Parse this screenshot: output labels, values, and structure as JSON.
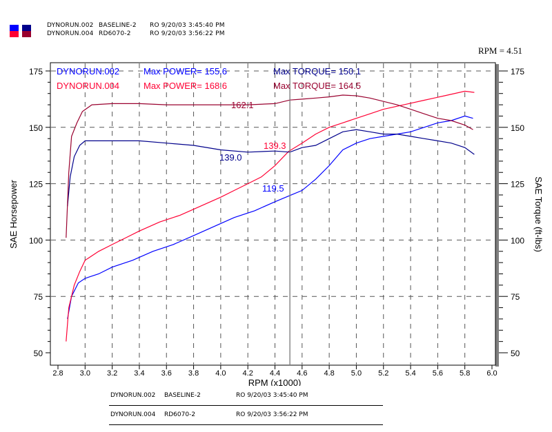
{
  "header": {
    "runs": [
      {
        "name": "DYNORUN.002",
        "desc": "BASELINE-2",
        "info": "RO 9/20/03 3:45:40 PM"
      },
      {
        "name": "DYNORUN.004",
        "desc": "RD6070-2",
        "info": "RO 9/20/03 3:56:22 PM"
      }
    ],
    "rpm_readout": "RPM = 4.51"
  },
  "chart_data": {
    "type": "line",
    "xlabel": "RPM (x1000)",
    "ylabel": "SAE Horsepower",
    "y2label": "SAE Torque (ft-lbs)",
    "xlim": [
      2.8,
      6.0
    ],
    "ylim": [
      50,
      175
    ],
    "y2lim": [
      50,
      175
    ],
    "x_ticks": [
      "2.8",
      "3.0",
      "3.2",
      "3.4",
      "3.6",
      "3.8",
      "4.0",
      "4.2",
      "4.4",
      "4.6",
      "4.8",
      "5.0",
      "5.2",
      "5.4",
      "5.6",
      "5.8",
      "6.0"
    ],
    "y_ticks": [
      "50",
      "75",
      "100",
      "125",
      "150",
      "175"
    ],
    "grid": true,
    "cursor_rpm": 4.51,
    "legend": [
      {
        "run": "DYNORUN.002",
        "power_text": "Max POWER= 155.6",
        "torque_text": "Max TORQUE= 150.1",
        "power_color": "#0000ff",
        "torque_color": "#00008b"
      },
      {
        "run": "DYNORUN.004",
        "power_text": "Max POWER= 168.6",
        "torque_text": "Max TORQUE= 164.5",
        "power_color": "#ff0033",
        "torque_color": "#99002e"
      }
    ],
    "cursor_labels": [
      {
        "text": "162.1",
        "color": "#99002e",
        "rpm": 4.51,
        "value": 162.1
      },
      {
        "text": "139.3",
        "color": "#ff0033",
        "rpm": 4.51,
        "value": 139.3
      },
      {
        "text": "139.0",
        "color": "#00008b",
        "rpm": 4.51,
        "value": 139.0
      },
      {
        "text": "119.5",
        "color": "#0000ff",
        "rpm": 4.51,
        "value": 119.5
      }
    ],
    "series": [
      {
        "name": "DYNORUN.002 POWER",
        "color": "#0000ff",
        "x": [
          2.87,
          2.9,
          2.95,
          3.0,
          3.1,
          3.2,
          3.35,
          3.5,
          3.65,
          3.8,
          3.95,
          4.1,
          4.25,
          4.4,
          4.5,
          4.6,
          4.7,
          4.8,
          4.9,
          5.0,
          5.1,
          5.2,
          5.3,
          5.4,
          5.5,
          5.6,
          5.7,
          5.8,
          5.86
        ],
        "y": [
          65,
          75,
          81,
          83,
          85,
          88,
          91,
          95,
          98,
          102,
          106,
          110,
          113,
          117,
          119.5,
          122,
          127,
          133,
          140,
          143,
          145,
          146,
          147,
          148,
          150,
          152,
          153,
          155,
          154
        ]
      },
      {
        "name": "DYNORUN.004 POWER",
        "color": "#ff0033",
        "x": [
          2.86,
          2.88,
          2.92,
          2.96,
          3.0,
          3.1,
          3.2,
          3.3,
          3.4,
          3.55,
          3.7,
          3.85,
          4.0,
          4.1,
          4.2,
          4.3,
          4.4,
          4.5,
          4.6,
          4.7,
          4.8,
          4.9,
          5.0,
          5.1,
          5.2,
          5.35,
          5.5,
          5.65,
          5.8,
          5.87
        ],
        "y": [
          55,
          70,
          80,
          86,
          91,
          95,
          98,
          101,
          104,
          108,
          111,
          115,
          119,
          122,
          125,
          128,
          133,
          139.3,
          143,
          147,
          150,
          152,
          154,
          156,
          158,
          160,
          162,
          164,
          166,
          165.5
        ]
      },
      {
        "name": "DYNORUN.002 TORQUE",
        "color": "#00008b",
        "x": [
          2.87,
          2.89,
          2.92,
          2.96,
          3.0,
          3.2,
          3.4,
          3.6,
          3.8,
          4.0,
          4.2,
          4.4,
          4.51,
          4.6,
          4.7,
          4.8,
          4.9,
          5.0,
          5.1,
          5.2,
          5.3,
          5.4,
          5.5,
          5.6,
          5.7,
          5.8,
          5.87
        ],
        "y": [
          115,
          128,
          137,
          142,
          144,
          144,
          144,
          143,
          142,
          140,
          139,
          139.5,
          139,
          141,
          142,
          145,
          148,
          149,
          148,
          147,
          147,
          146,
          145,
          144,
          143,
          141,
          138
        ]
      },
      {
        "name": "DYNORUN.004 TORQUE",
        "color": "#99002e",
        "x": [
          2.86,
          2.88,
          2.9,
          2.94,
          2.98,
          3.05,
          3.2,
          3.4,
          3.6,
          3.8,
          4.0,
          4.2,
          4.4,
          4.51,
          4.6,
          4.7,
          4.8,
          4.9,
          5.0,
          5.1,
          5.2,
          5.3,
          5.4,
          5.5,
          5.6,
          5.7,
          5.8,
          5.86
        ],
        "y": [
          101,
          130,
          146,
          152,
          157,
          160,
          160.5,
          160.5,
          160,
          160,
          160,
          160,
          160.5,
          162.1,
          162.5,
          163,
          163.5,
          164.3,
          164,
          163,
          161.5,
          160,
          158,
          156,
          154,
          153,
          151,
          149
        ]
      }
    ]
  }
}
